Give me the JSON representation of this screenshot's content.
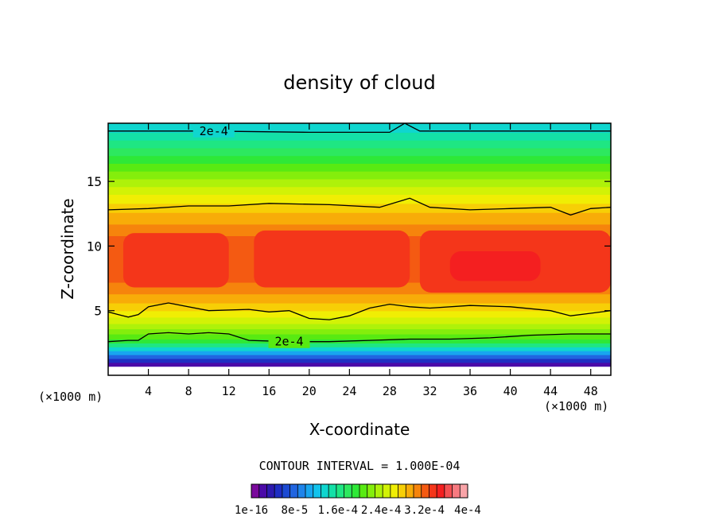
{
  "chart_data": {
    "type": "filled-contour",
    "title": "density of cloud",
    "xlabel": "X-coordinate",
    "ylabel": "Z-coordinate",
    "x_unit": "(×1000 m)",
    "xlim": [
      0,
      50
    ],
    "ylim": [
      0,
      19.5
    ],
    "x_ticks": [
      4,
      8,
      12,
      16,
      20,
      24,
      28,
      32,
      36,
      40,
      44,
      48
    ],
    "y_ticks": [
      5,
      10,
      15
    ],
    "contour_interval_text": "CONTOUR INTERVAL = 1.000E-04",
    "contour_labels": [
      {
        "text": "2e-4",
        "x": 10.5,
        "z": 18.9
      },
      {
        "text": "2e-4",
        "x": 18.0,
        "z": 2.6
      }
    ],
    "contour_lines": [
      {
        "name": "upper 2e-4 isoline",
        "points": [
          [
            0,
            18.9
          ],
          [
            10,
            18.9
          ],
          [
            20,
            18.8
          ],
          [
            28,
            18.8
          ],
          [
            29.5,
            19.5
          ],
          [
            31,
            18.9
          ],
          [
            40,
            18.9
          ],
          [
            50,
            18.9
          ]
        ]
      },
      {
        "name": "upper 4e-4 isoline",
        "points": [
          [
            0,
            12.8
          ],
          [
            4,
            12.9
          ],
          [
            8,
            13.1
          ],
          [
            12,
            13.1
          ],
          [
            16,
            13.3
          ],
          [
            22,
            13.2
          ],
          [
            27,
            13.0
          ],
          [
            30,
            13.7
          ],
          [
            32,
            13.0
          ],
          [
            36,
            12.8
          ],
          [
            40,
            12.9
          ],
          [
            44,
            13.0
          ],
          [
            46,
            12.4
          ],
          [
            48,
            12.9
          ],
          [
            50,
            13.0
          ]
        ]
      },
      {
        "name": "lower 4e-4 isoline",
        "points": [
          [
            0,
            4.9
          ],
          [
            1,
            4.7
          ],
          [
            2,
            4.5
          ],
          [
            3,
            4.7
          ],
          [
            4,
            5.3
          ],
          [
            6,
            5.6
          ],
          [
            10,
            5.0
          ],
          [
            14,
            5.1
          ],
          [
            16,
            4.9
          ],
          [
            18,
            5.0
          ],
          [
            20,
            4.4
          ],
          [
            22,
            4.3
          ],
          [
            24,
            4.6
          ],
          [
            26,
            5.2
          ],
          [
            28,
            5.5
          ],
          [
            30,
            5.3
          ],
          [
            32,
            5.2
          ],
          [
            36,
            5.4
          ],
          [
            40,
            5.3
          ],
          [
            44,
            5.0
          ],
          [
            46,
            4.6
          ],
          [
            48,
            4.8
          ],
          [
            50,
            5.0
          ]
        ]
      },
      {
        "name": "lower 2e-4 isoline",
        "points": [
          [
            0,
            2.6
          ],
          [
            2,
            2.7
          ],
          [
            3,
            2.7
          ],
          [
            4,
            3.2
          ],
          [
            6,
            3.3
          ],
          [
            8,
            3.2
          ],
          [
            10,
            3.3
          ],
          [
            12,
            3.2
          ],
          [
            14,
            2.7
          ],
          [
            18,
            2.6
          ],
          [
            22,
            2.6
          ],
          [
            26,
            2.7
          ],
          [
            30,
            2.8
          ],
          [
            34,
            2.8
          ],
          [
            38,
            2.9
          ],
          [
            42,
            3.1
          ],
          [
            46,
            3.2
          ],
          [
            50,
            3.2
          ]
        ]
      }
    ],
    "field_bands": [
      {
        "zmin": 0.0,
        "zmax": 0.7,
        "level": -1
      },
      {
        "zmin": 0.7,
        "zmax": 1.0,
        "level": 1
      },
      {
        "zmin": 1.0,
        "zmax": 1.3,
        "level": 3
      },
      {
        "zmin": 1.3,
        "zmax": 1.6,
        "level": 5
      },
      {
        "zmin": 1.6,
        "zmax": 1.9,
        "level": 7
      },
      {
        "zmin": 1.9,
        "zmax": 2.2,
        "level": 9
      },
      {
        "zmin": 2.2,
        "zmax": 2.5,
        "level": 11
      },
      {
        "zmin": 2.5,
        "zmax": 2.8,
        "level": 13
      },
      {
        "zmin": 2.8,
        "zmax": 3.2,
        "level": 14
      },
      {
        "zmin": 3.2,
        "zmax": 3.6,
        "level": 15
      },
      {
        "zmin": 3.6,
        "zmax": 4.0,
        "level": 16
      },
      {
        "zmin": 4.0,
        "zmax": 4.5,
        "level": 17
      },
      {
        "zmin": 4.5,
        "zmax": 5.0,
        "level": 18
      },
      {
        "zmin": 5.0,
        "zmax": 5.6,
        "level": 19
      },
      {
        "zmin": 5.6,
        "zmax": 6.3,
        "level": 20
      },
      {
        "zmin": 6.3,
        "zmax": 7.2,
        "level": 21
      },
      {
        "zmin": 7.2,
        "zmax": 10.8,
        "level": 22
      },
      {
        "zmin": 10.8,
        "zmax": 11.7,
        "level": 21
      },
      {
        "zmin": 11.7,
        "zmax": 12.6,
        "level": 20
      },
      {
        "zmin": 12.6,
        "zmax": 13.3,
        "level": 19
      },
      {
        "zmin": 13.3,
        "zmax": 14.0,
        "level": 18
      },
      {
        "zmin": 14.0,
        "zmax": 14.6,
        "level": 17
      },
      {
        "zmin": 14.6,
        "zmax": 15.2,
        "level": 16
      },
      {
        "zmin": 15.2,
        "zmax": 15.8,
        "level": 15
      },
      {
        "zmin": 15.8,
        "zmax": 16.4,
        "level": 14
      },
      {
        "zmin": 16.4,
        "zmax": 17.0,
        "level": 13
      },
      {
        "zmin": 17.0,
        "zmax": 17.6,
        "level": 12
      },
      {
        "zmin": 17.6,
        "zmax": 18.2,
        "level": 11
      },
      {
        "zmin": 18.2,
        "zmax": 18.8,
        "level": 10
      },
      {
        "zmin": 18.8,
        "zmax": 19.5,
        "level": 9
      }
    ],
    "field_patches": [
      {
        "name": "core max left",
        "x0": 1.5,
        "x1": 12.0,
        "z0": 6.8,
        "z1": 11.0,
        "level": 23
      },
      {
        "name": "core max center",
        "x0": 14.5,
        "x1": 30.0,
        "z0": 6.8,
        "z1": 11.2,
        "level": 23
      },
      {
        "name": "core max right",
        "x0": 31.0,
        "x1": 50.0,
        "z0": 6.4,
        "z1": 11.2,
        "level": 23
      },
      {
        "name": "peak right",
        "x0": 34.0,
        "x1": 43.0,
        "z0": 7.3,
        "z1": 9.6,
        "level": 24
      }
    ],
    "legend": {
      "colors": [
        "#7a0a9c",
        "#4b0aa8",
        "#2d1aaf",
        "#1f2ec3",
        "#1c4ad2",
        "#2165e0",
        "#1e84ea",
        "#18a6ef",
        "#12c3ec",
        "#0fd6cf",
        "#14e0a7",
        "#1fe683",
        "#2de85f",
        "#2ee837",
        "#58ea12",
        "#84ee0c",
        "#aef20a",
        "#d2f206",
        "#f0ee04",
        "#f7cf06",
        "#f8ac08",
        "#f6840c",
        "#f45a12",
        "#f4361a",
        "#f41f20",
        "#f45052",
        "#f77a80",
        "#f9a4a8"
      ],
      "labels": [
        "1e-16",
        "8e-5",
        "1.6e-4",
        "2.4e-4",
        "3.2e-4",
        "4e-4"
      ]
    }
  }
}
